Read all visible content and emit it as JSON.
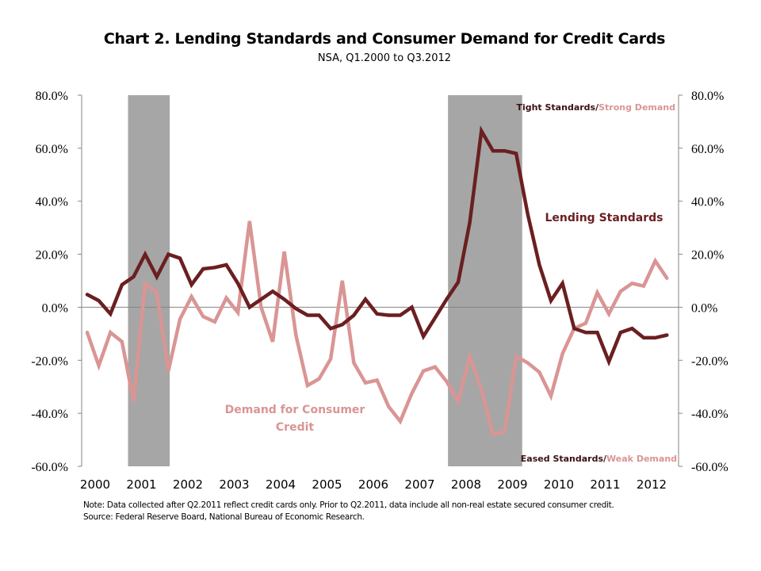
{
  "chart_data": {
    "type": "line",
    "title": "Chart 2. Lending Standards and Consumer Demand for Credit Cards",
    "subtitle": "NSA, Q1.2000 to Q3.2012",
    "xlabel": "",
    "ylabel": "",
    "x_start": "Q1.2000",
    "x_end": "Q3.2012",
    "x_frequency": "quarterly",
    "ylim": [
      -60,
      80
    ],
    "y_ticks": [
      "80.0%",
      "60.0%",
      "40.0%",
      "20.0%",
      "0.0%",
      "-20.0%",
      "-40.0%",
      "-60.0%"
    ],
    "y_tick_values": [
      80,
      60,
      40,
      20,
      0,
      -20,
      -40,
      -60
    ],
    "y2_ticks": [
      "80.0%",
      "60.0%",
      "40.0%",
      "20.0%",
      "0.0%",
      "-20.0%",
      "-40.0%",
      "-60.0%"
    ],
    "x_tick_labels": [
      "2000",
      "2001",
      "2002",
      "2003",
      "2004",
      "2005",
      "2006",
      "2007",
      "2008",
      "2009",
      "2010",
      "2011",
      "2012"
    ],
    "grid": false,
    "zero_line": true,
    "recessions": [
      {
        "start": 2001.0,
        "end": 2001.9,
        "label": "recession-2001"
      },
      {
        "start": 2007.9,
        "end": 2009.5,
        "label": "recession-2008"
      }
    ],
    "series": [
      {
        "name": "Lending Standards",
        "color": "#6b1f20",
        "values": [
          4.8,
          2.5,
          -2.5,
          8.5,
          11.5,
          20,
          11.5,
          20,
          18.5,
          8.5,
          14.5,
          15,
          16,
          9,
          0,
          3,
          6,
          3,
          -0.5,
          -3,
          -3,
          -8,
          -6.5,
          -3,
          3,
          -2.5,
          -3,
          -3,
          0,
          -11,
          -4,
          3,
          9.5,
          32,
          66.5,
          59,
          59,
          58,
          35,
          16,
          2.5,
          9,
          -8,
          -9.5,
          -9.5,
          -20.5,
          -9.5,
          -8,
          -11.5,
          -11.5,
          -10.5
        ]
      },
      {
        "name": "Demand for Consumer Credit",
        "color": "#d99594",
        "values": [
          -9.5,
          -22,
          -9.5,
          -13,
          -35.5,
          9,
          5.5,
          -24,
          -4.5,
          4,
          -3.5,
          -5.5,
          3.5,
          -2,
          32.5,
          0,
          -13,
          21,
          -10.5,
          -29.5,
          -27,
          -19.5,
          10,
          -21,
          -28.5,
          -27.5,
          -37.5,
          -43,
          -32.5,
          -24,
          -22.5,
          -28,
          -35.5,
          -18.5,
          -31,
          -48,
          -47,
          -18.5,
          -21,
          -24.5,
          -33.5,
          -17.5,
          -8,
          -6,
          5.5,
          -2.5,
          6,
          9,
          8,
          17.5,
          11
        ]
      }
    ],
    "series_labels": {
      "lending": "Lending Standards",
      "demand_line1": "Demand for Consumer",
      "demand_line2": "Credit"
    },
    "corner_labels": {
      "top_dark": "Tight Standards/",
      "top_light": "Strong Demand",
      "bottom_dark": "Eased Standards/",
      "bottom_light": "Weak Demand"
    },
    "note": "Note: Data collected after Q2.2011  reflect credit cards only. Prior to Q2.2011,  data include all non-real estate secured consumer credit.",
    "source": "Source: Federal Reserve Board, National Bureau of Economic Research."
  },
  "colors": {
    "recession_shade": "#a6a6a6",
    "axis": "#868686",
    "lending": "#6b1f20",
    "demand": "#d99594"
  }
}
